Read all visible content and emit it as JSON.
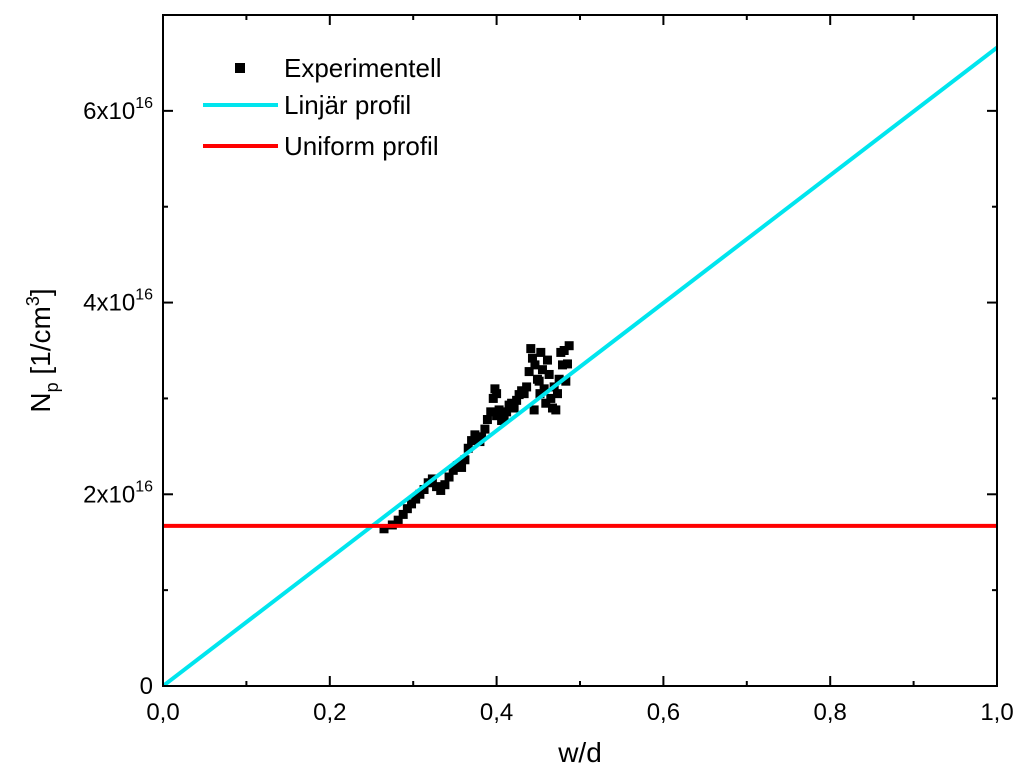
{
  "chart_data": {
    "type": "line",
    "title": "",
    "xlabel": "w/d",
    "ylabel": {
      "main": "N",
      "sub": "p",
      "unit_prefix": " [1/cm",
      "unit_sup": "3",
      "unit_suffix": "]"
    },
    "xlim": [
      0,
      1.0
    ],
    "ylim": [
      0,
      7e+16
    ],
    "grid": false,
    "legend_position": "top-left",
    "x_ticks": [
      {
        "value": 0.0,
        "label": "0,0"
      },
      {
        "value": 0.2,
        "label": "0,2"
      },
      {
        "value": 0.4,
        "label": "0,4"
      },
      {
        "value": 0.6,
        "label": "0,6"
      },
      {
        "value": 0.8,
        "label": "0,8"
      },
      {
        "value": 1.0,
        "label": "1,0"
      }
    ],
    "y_ticks": [
      {
        "value": 0,
        "base": "0",
        "exp": ""
      },
      {
        "value": 2e+16,
        "base": "2x10",
        "exp": "16"
      },
      {
        "value": 4e+16,
        "base": "4x10",
        "exp": "16"
      },
      {
        "value": 6e+16,
        "base": "6x10",
        "exp": "16"
      }
    ],
    "series": [
      {
        "name": "Experimentell",
        "kind": "scatter",
        "color": "#000000",
        "marker": "square",
        "points": [
          [
            0.265,
            1.64e+16
          ],
          [
            0.275,
            1.68e+16
          ],
          [
            0.282,
            1.73e+16
          ],
          [
            0.288,
            1.79e+16
          ],
          [
            0.293,
            1.85e+16
          ],
          [
            0.298,
            1.9e+16
          ],
          [
            0.303,
            1.95e+16
          ],
          [
            0.308,
            2e+16
          ],
          [
            0.313,
            2.05e+16
          ],
          [
            0.318,
            2.12e+16
          ],
          [
            0.323,
            2.16e+16
          ],
          [
            0.328,
            2.08e+16
          ],
          [
            0.333,
            2.04e+16
          ],
          [
            0.338,
            2.1e+16
          ],
          [
            0.343,
            2.18e+16
          ],
          [
            0.348,
            2.25e+16
          ],
          [
            0.353,
            2.3e+16
          ],
          [
            0.358,
            2.28e+16
          ],
          [
            0.362,
            2.36e+16
          ],
          [
            0.366,
            2.48e+16
          ],
          [
            0.37,
            2.56e+16
          ],
          [
            0.374,
            2.62e+16
          ],
          [
            0.378,
            2.58e+16
          ],
          [
            0.382,
            2.6e+16
          ],
          [
            0.386,
            2.68e+16
          ],
          [
            0.389,
            2.78e+16
          ],
          [
            0.393,
            2.86e+16
          ],
          [
            0.396,
            3e+16
          ],
          [
            0.398,
            3.1e+16
          ],
          [
            0.4,
            2.82e+16
          ],
          [
            0.403,
            2.88e+16
          ],
          [
            0.406,
            2.77e+16
          ],
          [
            0.409,
            2.8e+16
          ],
          [
            0.412,
            2.86e+16
          ],
          [
            0.415,
            2.93e+16
          ],
          [
            0.418,
            2.95e+16
          ],
          [
            0.421,
            2.9e+16
          ],
          [
            0.424,
            2.98e+16
          ],
          [
            0.427,
            3.04e+16
          ],
          [
            0.43,
            3.08e+16
          ],
          [
            0.433,
            3.05e+16
          ],
          [
            0.436,
            3.12e+16
          ],
          [
            0.439,
            3.28e+16
          ],
          [
            0.441,
            3.52e+16
          ],
          [
            0.443,
            3.42e+16
          ],
          [
            0.446,
            3.35e+16
          ],
          [
            0.449,
            3.2e+16
          ],
          [
            0.451,
            3.18e+16
          ],
          [
            0.453,
            3.48e+16
          ],
          [
            0.455,
            3.3e+16
          ],
          [
            0.457,
            3.1e+16
          ],
          [
            0.459,
            2.95e+16
          ],
          [
            0.461,
            3.4e+16
          ],
          [
            0.463,
            3.25e+16
          ],
          [
            0.465,
            3e+16
          ],
          [
            0.467,
            2.9e+16
          ],
          [
            0.469,
            3.12e+16
          ],
          [
            0.471,
            2.88e+16
          ],
          [
            0.473,
            3.05e+16
          ],
          [
            0.475,
            3.2e+16
          ],
          [
            0.477,
            3.48e+16
          ],
          [
            0.479,
            3.35e+16
          ],
          [
            0.481,
            3.5e+16
          ],
          [
            0.483,
            3.18e+16
          ],
          [
            0.485,
            3.36e+16
          ],
          [
            0.487,
            3.55e+16
          ],
          [
            0.445,
            2.88e+16
          ],
          [
            0.452,
            3.05e+16
          ],
          [
            0.4,
            3.05e+16
          ],
          [
            0.38,
            2.55e+16
          ]
        ]
      },
      {
        "name": "Linjär profil",
        "kind": "line",
        "color": "#00e5ee",
        "points": [
          [
            0.0,
            0.0
          ],
          [
            1.0,
            6.66e+16
          ]
        ]
      },
      {
        "name": "Uniform profil",
        "kind": "line",
        "color": "#ff0000",
        "points": [
          [
            0.0,
            1.67e+16
          ],
          [
            1.0,
            1.67e+16
          ]
        ]
      }
    ]
  }
}
